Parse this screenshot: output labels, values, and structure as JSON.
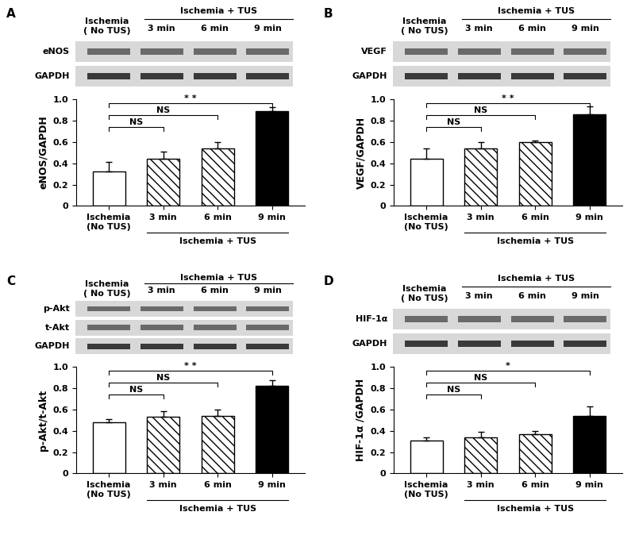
{
  "chart_data": [
    {
      "panel": "A",
      "type": "bar",
      "blot": {
        "rows": [
          "eNOS",
          "GAPDH"
        ],
        "header": "Ischemia\n( No TUS)",
        "group": "Ischemia + TUS",
        "lanes": [
          "3 min",
          "6 min",
          "9 min"
        ]
      },
      "y_label": "eNOS/GAPDH",
      "categories": [
        "Ischemia\n(No TUS)",
        "3 min",
        "6 min",
        "9 min"
      ],
      "group_label": "Ischemia + TUS",
      "values": [
        0.32,
        0.44,
        0.54,
        0.89
      ],
      "errors": [
        0.09,
        0.07,
        0.06,
        0.03
      ],
      "colors": [
        "#ffffff",
        "#ffffff",
        "#ffffff",
        "#000000"
      ],
      "ylim": [
        0,
        1.0
      ],
      "yticks": [
        0,
        0.2,
        0.4,
        0.6,
        0.8,
        {
          "value": 1.0,
          "label": "1.0"
        }
      ],
      "significance": [
        {
          "pair": [
            0,
            1
          ],
          "label": "NS"
        },
        {
          "pair": [
            0,
            2
          ],
          "label": "NS"
        },
        {
          "pair": [
            0,
            3
          ],
          "label": "* *"
        }
      ]
    },
    {
      "panel": "B",
      "type": "bar",
      "blot": {
        "rows": [
          "VEGF",
          "GAPDH"
        ],
        "header": "Ischemia\n( No TUS)",
        "group": "Ischemia + TUS",
        "lanes": [
          "3 min",
          "6 min",
          "9 min"
        ]
      },
      "y_label": "VEGF/GAPDH",
      "categories": [
        "Ischemia\n(No TUS)",
        "3 min",
        "6 min",
        "9 min"
      ],
      "group_label": "Ischemia + TUS",
      "values": [
        0.44,
        0.54,
        0.6,
        0.86
      ],
      "errors": [
        0.1,
        0.06,
        0.01,
        0.07
      ],
      "colors": [
        "#ffffff",
        "#ffffff",
        "#ffffff",
        "#000000"
      ],
      "ylim": [
        0,
        1.0
      ],
      "yticks": [
        0,
        0.2,
        0.4,
        0.6,
        0.8,
        {
          "value": 1.0,
          "label": "1.0"
        }
      ],
      "significance": [
        {
          "pair": [
            0,
            1
          ],
          "label": "NS"
        },
        {
          "pair": [
            0,
            2
          ],
          "label": "NS"
        },
        {
          "pair": [
            0,
            3
          ],
          "label": "* *"
        }
      ]
    },
    {
      "panel": "C",
      "type": "bar",
      "blot": {
        "rows": [
          "p-Akt",
          "t-Akt",
          "GAPDH"
        ],
        "header": "Ischemia\n( No TUS)",
        "group": "Ischemia + TUS",
        "lanes": [
          "3 min",
          "6 min",
          "9 min"
        ]
      },
      "y_label": "p-Akt/t-Akt",
      "categories": [
        "Ischemia\n(No TUS)",
        "3 min",
        "6 min",
        "9 min"
      ],
      "group_label": "Ischemia + TUS",
      "values": [
        0.48,
        0.53,
        0.54,
        0.82
      ],
      "errors": [
        0.03,
        0.05,
        0.06,
        0.05
      ],
      "colors": [
        "#ffffff",
        "#ffffff",
        "#ffffff",
        "#000000"
      ],
      "ylim": [
        0,
        1.0
      ],
      "yticks": [
        0,
        0.2,
        0.4,
        0.6,
        0.8,
        {
          "value": 1.0,
          "label": "1.0"
        }
      ],
      "significance": [
        {
          "pair": [
            0,
            1
          ],
          "label": "NS"
        },
        {
          "pair": [
            0,
            2
          ],
          "label": "NS"
        },
        {
          "pair": [
            0,
            3
          ],
          "label": "* *"
        }
      ]
    },
    {
      "panel": "D",
      "type": "bar",
      "blot": {
        "rows": [
          "HIF-1α",
          "GAPDH"
        ],
        "header": "Ischemia\n( No TUS)",
        "group": "Ischemia + TUS",
        "lanes": [
          "3 min",
          "6 min",
          "9 min"
        ]
      },
      "y_label": "HIF-1α /GAPDH",
      "categories": [
        "Ischemia\n(No TUS)",
        "3 min",
        "6 min",
        "9 min"
      ],
      "group_label": "Ischemia + TUS",
      "values": [
        0.31,
        0.34,
        0.37,
        0.54
      ],
      "errors": [
        0.03,
        0.05,
        0.03,
        0.09
      ],
      "colors": [
        "#ffffff",
        "#ffffff",
        "#ffffff",
        "#000000"
      ],
      "ylim": [
        0,
        1.0
      ],
      "yticks": [
        0,
        0.2,
        0.4,
        0.6,
        0.8,
        {
          "value": 1.0,
          "label": "1.0"
        }
      ],
      "significance": [
        {
          "pair": [
            0,
            1
          ],
          "label": "NS"
        },
        {
          "pair": [
            0,
            2
          ],
          "label": "NS"
        },
        {
          "pair": [
            0,
            3
          ],
          "label": "*"
        }
      ]
    }
  ]
}
